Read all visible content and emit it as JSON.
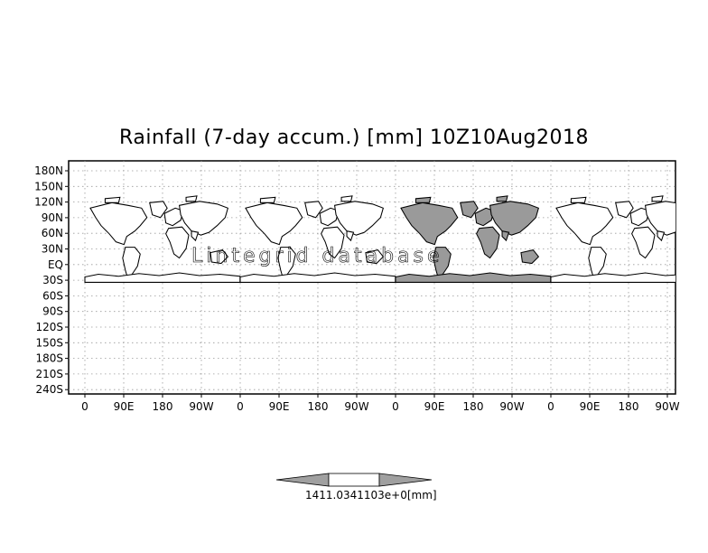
{
  "title": "Rainfall (7-day accum.) [mm] 10Z10Aug2018",
  "watermark": "Lintegrid  database",
  "lat_labels": [
    "180N",
    "150N",
    "120N",
    "90N",
    "60N",
    "30N",
    "EQ",
    "30S",
    "60S",
    "90S",
    "120S",
    "150S",
    "180S",
    "210S",
    "240S"
  ],
  "lon_labels": [
    "0",
    "90E",
    "180",
    "90W",
    "0",
    "90E",
    "180",
    "90W",
    "0",
    "90E",
    "180",
    "90W",
    "0",
    "90E",
    "180",
    "90W"
  ],
  "colorbar": {
    "label": "1411.0341103e+0[mm]",
    "fill_color": "#a0a0a0"
  },
  "colors": {
    "land_rain_fill": "#9a9a9a",
    "grid": "#9a9a9a",
    "coast": "#000000"
  }
}
